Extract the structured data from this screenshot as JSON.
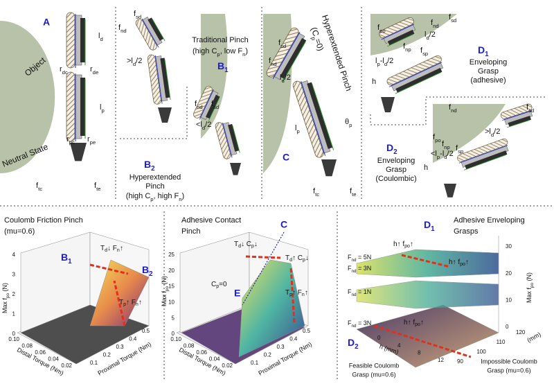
{
  "top": {
    "a": {
      "label": "A",
      "object": "Object",
      "state": "Neutral State",
      "ld": [
        "l",
        "d"
      ],
      "rdc": [
        "r",
        "dc"
      ],
      "rde": [
        "r",
        "de"
      ],
      "lp": [
        "l",
        "p"
      ],
      "rpc": [
        "r",
        "pc"
      ],
      "rpe": [
        "r",
        "pe"
      ],
      "ftc": [
        "f",
        "tc"
      ],
      "fte": [
        "f",
        "te"
      ]
    },
    "b1": {
      "label": [
        "B",
        "1"
      ],
      "title": "Traditional Pinch",
      "note": [
        "(high C",
        "p",
        ", low F",
        "n",
        ")"
      ],
      "fsd": [
        "f",
        "sd"
      ],
      "fnd": [
        "f",
        "nd"
      ],
      "ratio": [
        ">l",
        "d",
        "/2"
      ]
    },
    "b2": {
      "label": [
        "B",
        "2"
      ],
      "title": "Hyperextended",
      "title2": "Pinch",
      "note": [
        "(high C",
        "p",
        ", high F",
        "n",
        ")"
      ],
      "fsd": [
        "f",
        "sd"
      ],
      "fnd": [
        "f",
        "nd"
      ],
      "ratio": [
        "<l",
        "d",
        "/2"
      ]
    },
    "c": {
      "label": "C",
      "title": "Hyperextended Pinch",
      "note": [
        "(C",
        "p",
        "=0)"
      ],
      "fsd": [
        "f",
        "sd"
      ],
      "fnd": [
        "f",
        "nd"
      ],
      "ratio": [
        "l",
        "d",
        "/2"
      ],
      "lp": [
        "l",
        "p"
      ],
      "theta": [
        "θ",
        "p"
      ],
      "ftc": [
        "f",
        "tc"
      ],
      "fte": [
        "f",
        "te"
      ]
    },
    "d1": {
      "label": [
        "D",
        "1"
      ],
      "lines": [
        "Enveloping",
        "Grasp",
        "(adhesive)"
      ],
      "fpo": [
        "f",
        "po"
      ],
      "fnd": [
        "f",
        "nd"
      ],
      "fsd": [
        "f",
        "sd"
      ],
      "ratio": [
        "l",
        "d",
        "/2"
      ],
      "fnp": [
        "f",
        "np"
      ],
      "fsp": [
        "f",
        "sp"
      ],
      "lpld": [
        "l",
        "p",
        "-l",
        "d",
        "/2"
      ],
      "h": "h"
    },
    "d2": {
      "label": [
        "D",
        "2"
      ],
      "lines": [
        "Enveloping",
        "Grasp",
        "(Coulombic)"
      ],
      "fpo": [
        "f",
        "po"
      ],
      "fnd": [
        "f",
        "nd"
      ],
      "fsd": [
        "f",
        "sd"
      ],
      "ratio": [
        ">l",
        "d",
        "/2"
      ],
      "fnp": [
        "f",
        "np"
      ],
      "fsp": [
        "f",
        "sp"
      ],
      "lpld": [
        "<l",
        "p",
        "-l",
        "d",
        "/2"
      ],
      "h": "h"
    }
  },
  "bottom": {
    "p1": {
      "title": "Coulomb Friction Pinch",
      "title2": "(mu=0.6)",
      "zlabel": [
        "Max f",
        "po",
        " (N)"
      ],
      "xlabel": "Distal Torque (Nm)",
      "ylabel": "Proximal Torque (Nm)",
      "zticks": [
        "0",
        "1",
        "2",
        "3",
        "4"
      ],
      "xticks": [
        "0.10",
        "0.08",
        "0.06",
        "0.04",
        "0.02"
      ],
      "yticks": [
        "0.1",
        "0.2",
        "0.3",
        "0.4",
        "0.5"
      ],
      "b1": [
        "B",
        "1"
      ],
      "b2": [
        "B",
        "2"
      ],
      "ann1": [
        "T",
        "d",
        "↓ F",
        "n",
        "↑"
      ],
      "ann2": [
        "T",
        "p",
        "↑ F",
        "n",
        "↑"
      ]
    },
    "p2": {
      "title": "Adhesive Contact",
      "title2": "Pinch",
      "zlabel": [
        "Max f",
        "po",
        " (N)"
      ],
      "xlabel": "Distal Torque (Nm)",
      "ylabel": "Proximal Torque (Nm)",
      "zticks": [
        "0",
        "5",
        "10",
        "15",
        "20",
        "25"
      ],
      "xticks": [
        "0.10",
        "0.08",
        "0.06",
        "0.04",
        "0.02"
      ],
      "yticks": [
        "0.1",
        "0.2",
        "0.3",
        "0.4",
        "0.5"
      ],
      "c": "C",
      "e": "E",
      "cp0": [
        "C",
        "p",
        "=0"
      ],
      "ann1": [
        "T",
        "d",
        "↓ C",
        "p",
        "↓"
      ],
      "ann2": [
        "T",
        "d",
        "↑ C",
        "p",
        "↓"
      ],
      "ann3": [
        "T",
        "p",
        "↑ F",
        "n",
        "↑"
      ]
    },
    "p3": {
      "title": "Adhesive Enveloping",
      "title2": "Grasps",
      "zlabel": [
        "Max f",
        "po",
        " (N)"
      ],
      "xlabel": "h (mm)",
      "ylabel": "(mm)",
      "zticks": [
        "0",
        "10",
        "20",
        "30"
      ],
      "xticks": [
        "0",
        "4",
        "8",
        "12"
      ],
      "yticks": [
        "90",
        "100",
        "110",
        "120"
      ],
      "d1": [
        "D",
        "1"
      ],
      "d2": [
        "D",
        "2"
      ],
      "f5": [
        "F",
        "nd",
        " = 5N"
      ],
      "f3": [
        "F",
        "nd",
        " = 3N"
      ],
      "f1": [
        "F",
        "nd",
        " = 1N"
      ],
      "f3b": [
        "F",
        "nd",
        " = 3N"
      ],
      "ann1": [
        "h↑ f",
        "po",
        "↑"
      ],
      "ann2": [
        "h↑ f",
        "po",
        "↑"
      ],
      "ann3": [
        "h↑ f",
        "po",
        "↑"
      ],
      "feasible": "Feasible Coulomb",
      "feasible2": "Grasp (mu=0.6)",
      "impossible": "Impossible Coulomb",
      "impossible2": "Grasp (mu=0.6)"
    }
  }
}
